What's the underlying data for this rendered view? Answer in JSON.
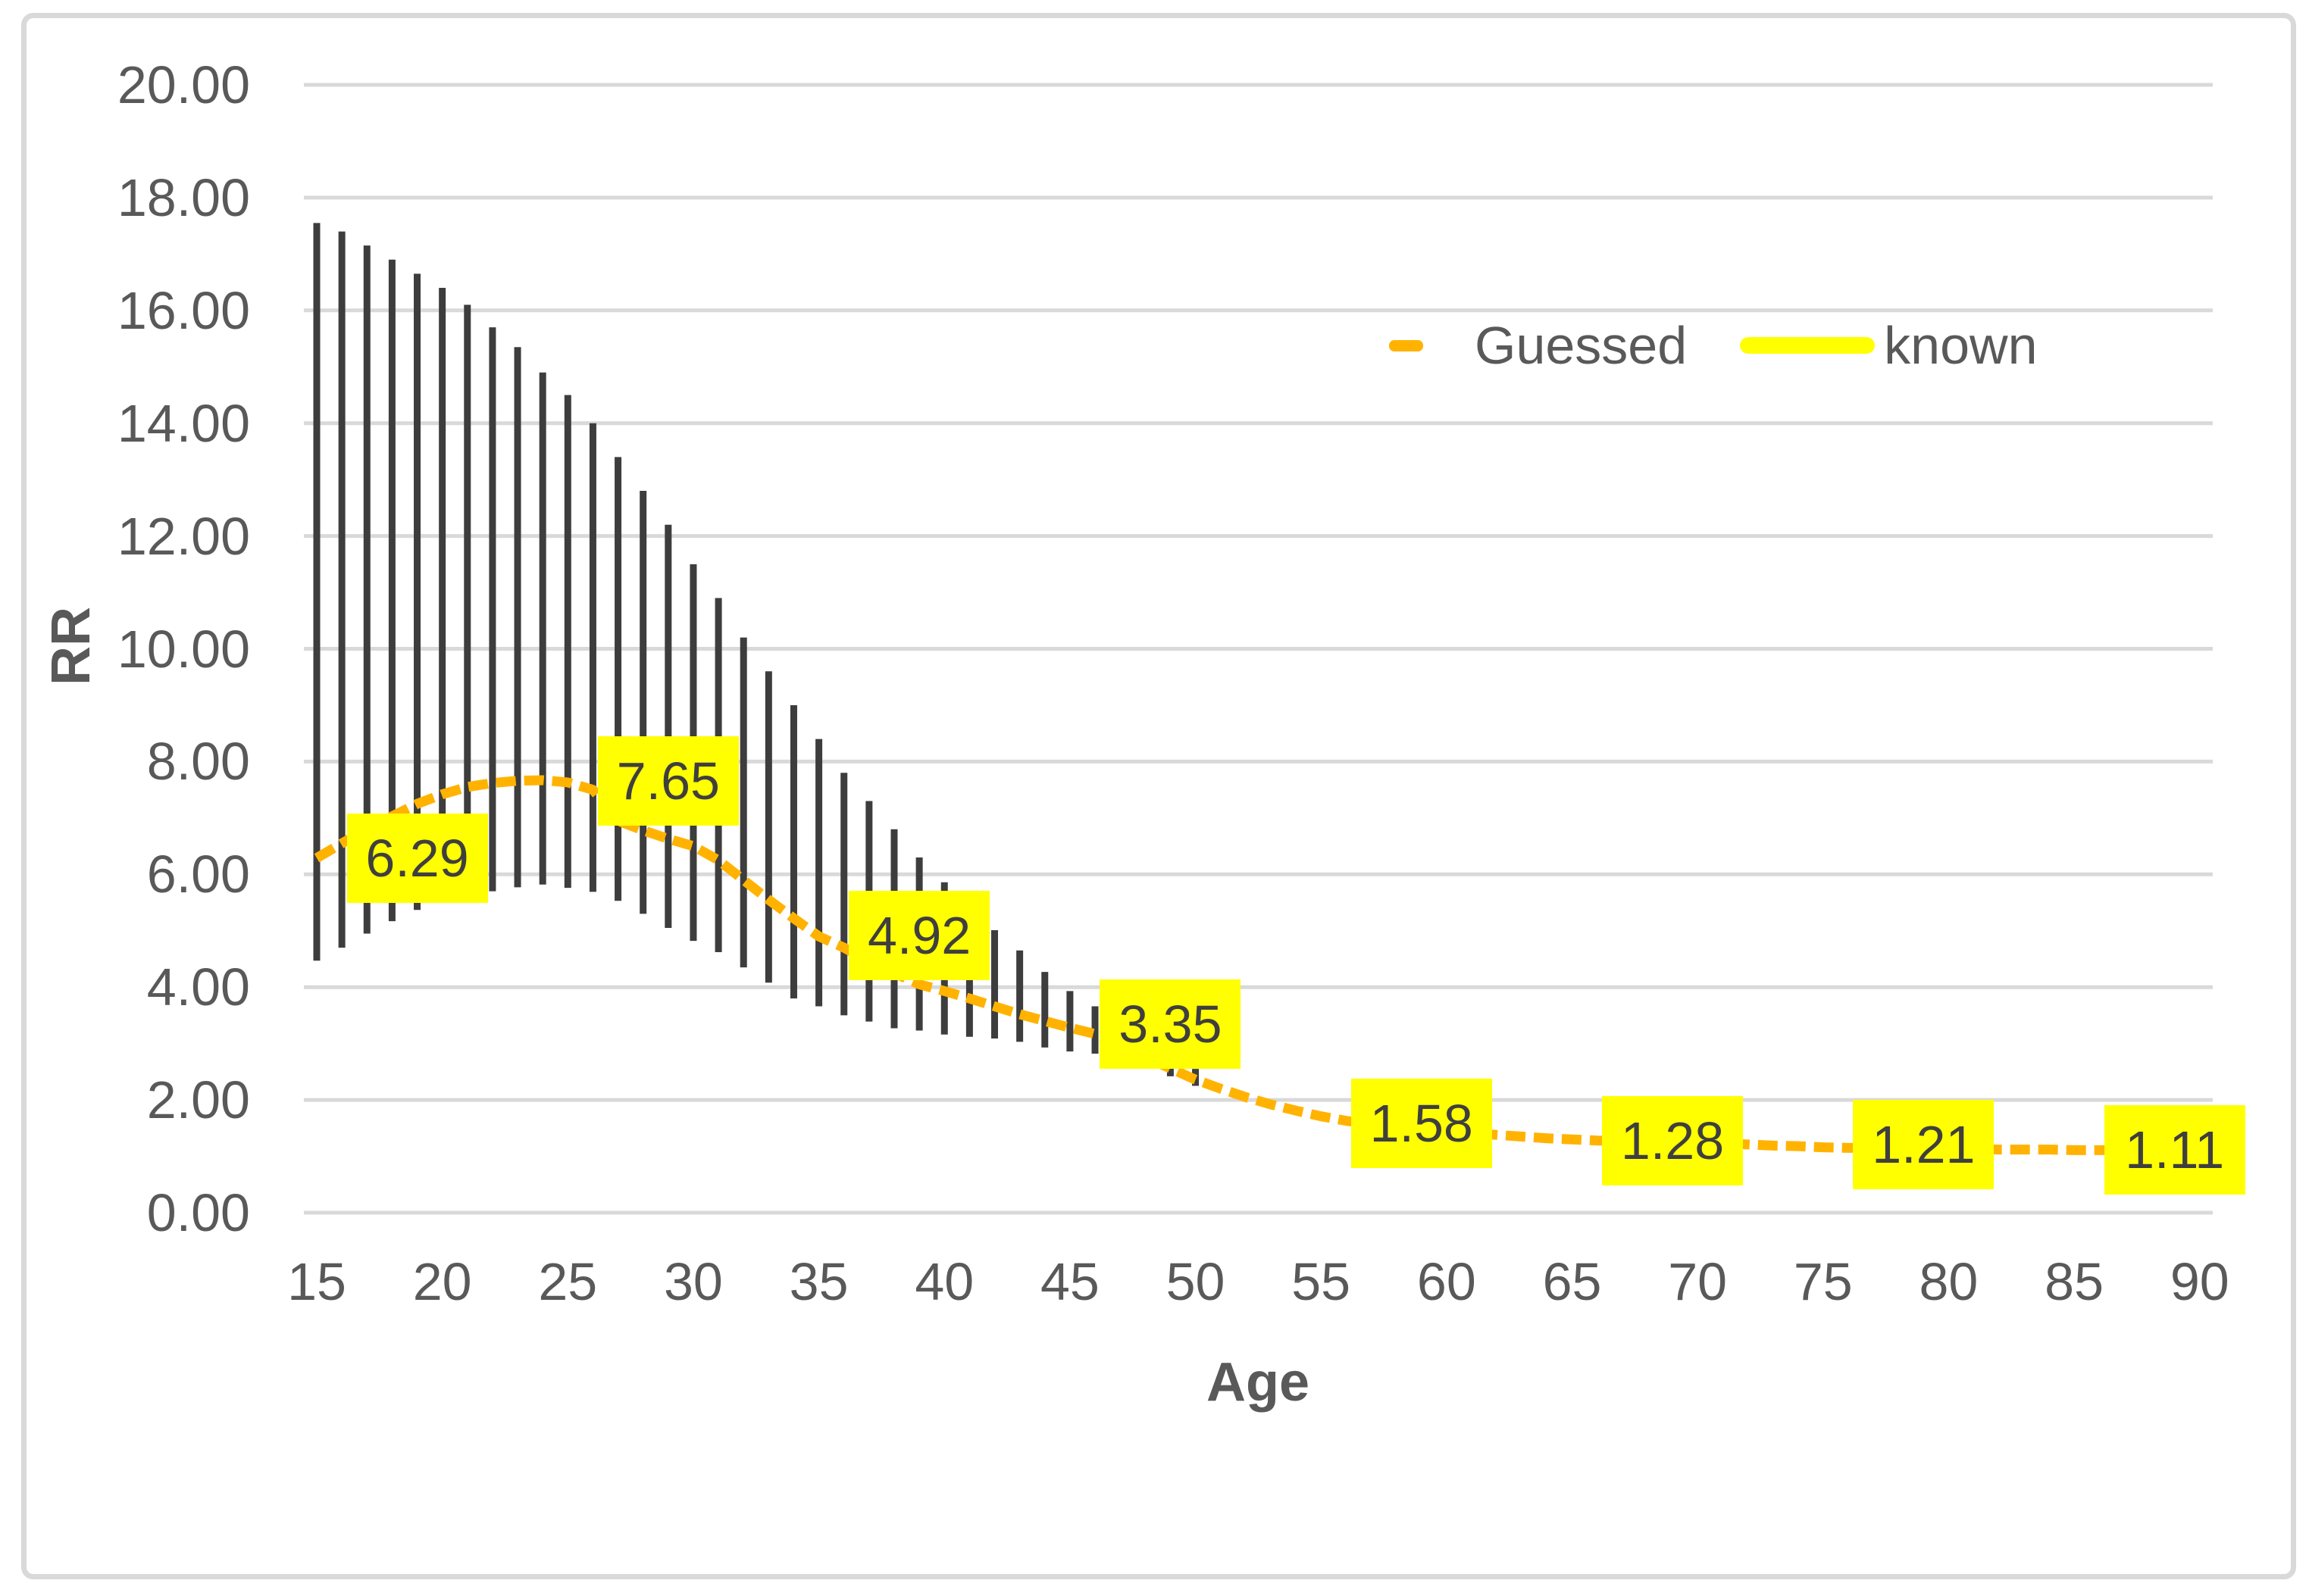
{
  "chart_data": {
    "type": "line",
    "title": "",
    "xlabel": "Age",
    "ylabel": "RR",
    "x_domain": [
      15,
      90
    ],
    "ylim": [
      0,
      20
    ],
    "grid": "horizontal",
    "legend_position": "inside-top-right",
    "colors": {
      "grid": "#D9D9D9",
      "frame_border": "#D9D9D9",
      "error_bar": "#3D3D3D",
      "guessed": "#FFB300",
      "known_bg": "#FFFF00",
      "known_text": "#3F3F3F",
      "axis_text": "#595959"
    },
    "y_ticks": [
      {
        "value": 20,
        "label": "20.00"
      },
      {
        "value": 18,
        "label": "18.00"
      },
      {
        "value": 16,
        "label": "16.00"
      },
      {
        "value": 14,
        "label": "14.00"
      },
      {
        "value": 12,
        "label": "12.00"
      },
      {
        "value": 10,
        "label": "10.00"
      },
      {
        "value": 8,
        "label": "8.00"
      },
      {
        "value": 6,
        "label": "6.00"
      },
      {
        "value": 4,
        "label": "4.00"
      },
      {
        "value": 2,
        "label": "2.00"
      },
      {
        "value": 0,
        "label": "0.00"
      }
    ],
    "x_ticks": [
      {
        "value": 15,
        "label": "15"
      },
      {
        "value": 20,
        "label": "20"
      },
      {
        "value": 25,
        "label": "25"
      },
      {
        "value": 30,
        "label": "30"
      },
      {
        "value": 35,
        "label": "35"
      },
      {
        "value": 40,
        "label": "40"
      },
      {
        "value": 45,
        "label": "45"
      },
      {
        "value": 50,
        "label": "50"
      },
      {
        "value": 55,
        "label": "55"
      },
      {
        "value": 60,
        "label": "60"
      },
      {
        "value": 65,
        "label": "65"
      },
      {
        "value": 70,
        "label": "70"
      },
      {
        "value": 75,
        "label": "75"
      },
      {
        "value": 80,
        "label": "80"
      },
      {
        "value": 85,
        "label": "85"
      },
      {
        "value": 90,
        "label": "90"
      }
    ],
    "series": [
      {
        "name": "Guessed",
        "style": "dashed-line",
        "color": "#FFB300",
        "x": [
          15,
          16,
          17,
          18,
          19,
          20,
          21,
          22,
          23,
          24,
          25,
          26,
          27,
          28,
          29,
          30,
          31,
          32,
          33,
          34,
          35,
          36,
          37,
          38,
          39,
          40,
          41,
          42,
          43,
          44,
          45,
          46,
          47,
          48,
          49,
          50,
          51,
          52,
          53,
          54,
          55,
          56,
          57,
          58,
          59,
          60,
          61,
          62,
          63,
          64,
          65,
          66,
          67,
          68,
          69,
          70,
          71,
          72,
          73,
          74,
          75,
          76,
          77,
          78,
          79,
          80,
          81,
          82,
          83,
          84,
          85,
          86,
          87,
          88,
          89,
          90
        ],
        "values": [
          6.29,
          6.55,
          6.8,
          7.03,
          7.25,
          7.42,
          7.55,
          7.62,
          7.66,
          7.67,
          7.63,
          7.5,
          6.95,
          6.78,
          6.63,
          6.5,
          6.25,
          5.9,
          5.55,
          5.22,
          4.9,
          4.7,
          4.45,
          4.25,
          4.05,
          3.93,
          3.8,
          3.66,
          3.52,
          3.4,
          3.28,
          3.17,
          2.98,
          2.76,
          2.56,
          2.36,
          2.2,
          2.05,
          1.92,
          1.81,
          1.71,
          1.63,
          1.57,
          1.52,
          1.48,
          1.44,
          1.41,
          1.38,
          1.35,
          1.32,
          1.3,
          1.28,
          1.27,
          1.26,
          1.25,
          1.24,
          1.23,
          1.21,
          1.19,
          1.18,
          1.16,
          1.15,
          1.15,
          1.14,
          1.14,
          1.13,
          1.13,
          1.12,
          1.12,
          1.12,
          1.11,
          1.11,
          1.11,
          1.11,
          1.1,
          1.1
        ]
      },
      {
        "name": "known",
        "style": "data-labels",
        "color": "#FFFF00",
        "points": [
          {
            "x": 19,
            "y": 6.29,
            "label": "6.29"
          },
          {
            "x": 29,
            "y": 7.65,
            "label": "7.65"
          },
          {
            "x": 39,
            "y": 4.92,
            "label": "4.92"
          },
          {
            "x": 49,
            "y": 3.35,
            "label": "3.35"
          },
          {
            "x": 59,
            "y": 1.58,
            "label": "1.58"
          },
          {
            "x": 69,
            "y": 1.28,
            "label": "1.28"
          },
          {
            "x": 79,
            "y": 1.21,
            "label": "1.21"
          },
          {
            "x": 89,
            "y": 1.11,
            "label": "1.11"
          }
        ]
      }
    ],
    "error_bars": {
      "color": "#3D3D3D",
      "points": [
        {
          "x": 15,
          "low": 4.47,
          "high": 17.55
        },
        {
          "x": 16,
          "low": 4.7,
          "high": 17.4
        },
        {
          "x": 17,
          "low": 4.95,
          "high": 17.15
        },
        {
          "x": 18,
          "low": 5.17,
          "high": 16.9
        },
        {
          "x": 19,
          "low": 5.37,
          "high": 16.65
        },
        {
          "x": 20,
          "low": 5.5,
          "high": 16.4
        },
        {
          "x": 21,
          "low": 5.6,
          "high": 16.1
        },
        {
          "x": 22,
          "low": 5.7,
          "high": 15.7
        },
        {
          "x": 23,
          "low": 5.77,
          "high": 15.35
        },
        {
          "x": 24,
          "low": 5.82,
          "high": 14.9
        },
        {
          "x": 25,
          "low": 5.76,
          "high": 14.5
        },
        {
          "x": 26,
          "low": 5.69,
          "high": 14.0
        },
        {
          "x": 27,
          "low": 5.53,
          "high": 13.4
        },
        {
          "x": 28,
          "low": 5.3,
          "high": 12.8
        },
        {
          "x": 29,
          "low": 5.05,
          "high": 12.2
        },
        {
          "x": 30,
          "low": 4.82,
          "high": 11.5
        },
        {
          "x": 31,
          "low": 4.62,
          "high": 10.9
        },
        {
          "x": 32,
          "low": 4.35,
          "high": 10.2
        },
        {
          "x": 33,
          "low": 4.08,
          "high": 9.6
        },
        {
          "x": 34,
          "low": 3.8,
          "high": 9.0
        },
        {
          "x": 35,
          "low": 3.66,
          "high": 8.4
        },
        {
          "x": 36,
          "low": 3.5,
          "high": 7.8
        },
        {
          "x": 37,
          "low": 3.39,
          "high": 7.3
        },
        {
          "x": 38,
          "low": 3.27,
          "high": 6.8
        },
        {
          "x": 39,
          "low": 3.23,
          "high": 6.3
        },
        {
          "x": 40,
          "low": 3.16,
          "high": 5.86
        },
        {
          "x": 41,
          "low": 3.12,
          "high": 5.5
        },
        {
          "x": 42,
          "low": 3.09,
          "high": 5.01
        },
        {
          "x": 43,
          "low": 3.03,
          "high": 4.65
        },
        {
          "x": 44,
          "low": 2.93,
          "high": 4.27
        },
        {
          "x": 45,
          "low": 2.86,
          "high": 3.93
        },
        {
          "x": 46,
          "low": 2.82,
          "high": 3.66
        },
        {
          "x": 47,
          "low": 2.77,
          "high": 3.48
        },
        {
          "x": 48,
          "low": 2.7,
          "high": 3.3
        },
        {
          "x": 49,
          "low": 2.42,
          "high": 3.1
        },
        {
          "x": 50,
          "low": 2.25,
          "high": 2.55
        }
      ]
    }
  }
}
